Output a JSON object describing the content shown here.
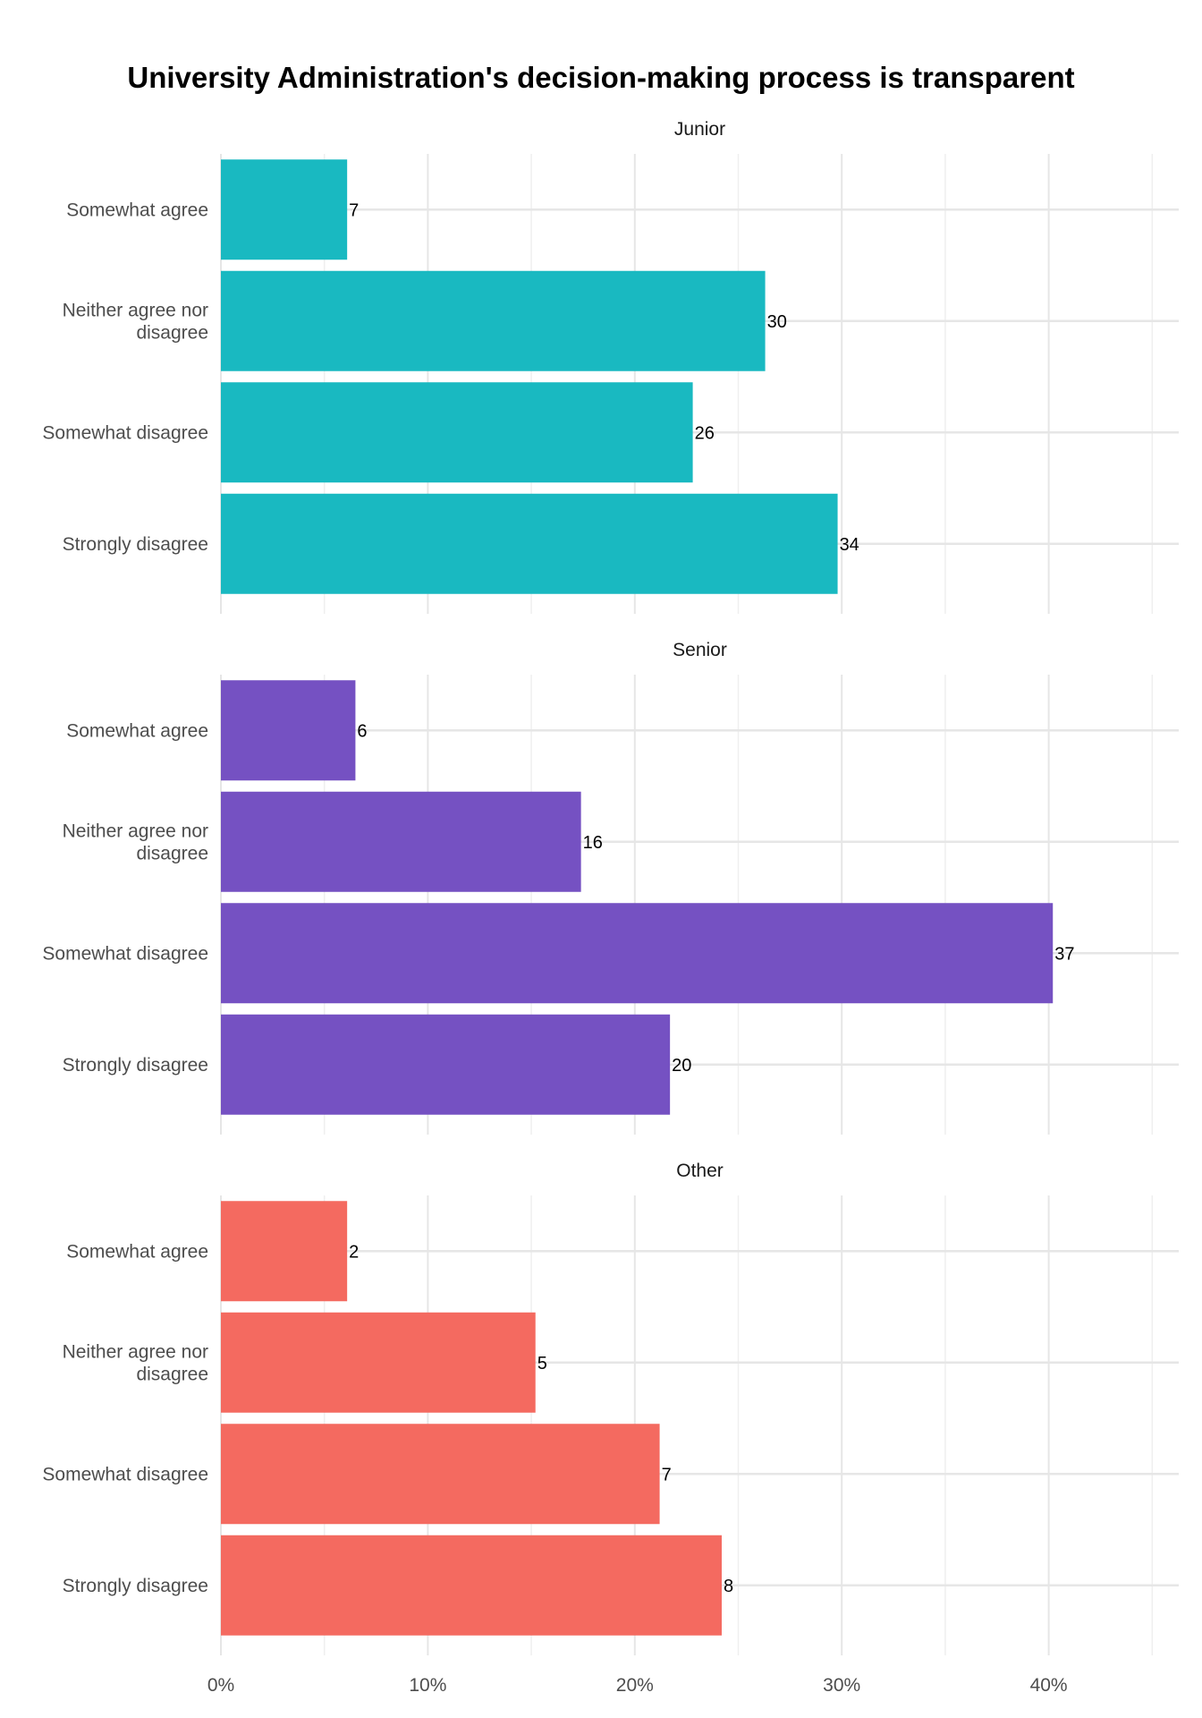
{
  "chart_data": {
    "type": "bar",
    "orientation": "horizontal",
    "title": "University Administration's decision-making process is transparent",
    "xlabel": "",
    "ylabel": "",
    "x_axis_format": "percent",
    "xlim": [
      0,
      46
    ],
    "x_ticks": [
      0,
      10,
      20,
      30,
      40
    ],
    "x_tick_labels": [
      "0%",
      "10%",
      "20%",
      "30%",
      "40%"
    ],
    "categories": [
      "Somewhat agree",
      "Neither agree nor disagree",
      "Somewhat disagree",
      "Strongly disagree"
    ],
    "category_label_lines": [
      [
        "Somewhat agree"
      ],
      [
        "Neither agree nor",
        "disagree"
      ],
      [
        "Somewhat disagree"
      ],
      [
        "Strongly disagree"
      ]
    ],
    "grid": true,
    "legend": "none",
    "facets": [
      {
        "name": "Junior",
        "color": "#19B9C1",
        "percent": [
          6.1,
          26.3,
          22.8,
          29.8
        ],
        "counts": [
          "7",
          "30",
          "26",
          "34"
        ]
      },
      {
        "name": "Senior",
        "color": "#7551C2",
        "percent": [
          6.5,
          17.4,
          40.2,
          21.7
        ],
        "counts": [
          "6",
          "16",
          "37",
          "20"
        ]
      },
      {
        "name": "Other",
        "color": "#F46A60",
        "percent": [
          6.1,
          15.2,
          21.2,
          24.2
        ],
        "counts": [
          "2",
          "5",
          "7",
          "8"
        ]
      }
    ]
  }
}
